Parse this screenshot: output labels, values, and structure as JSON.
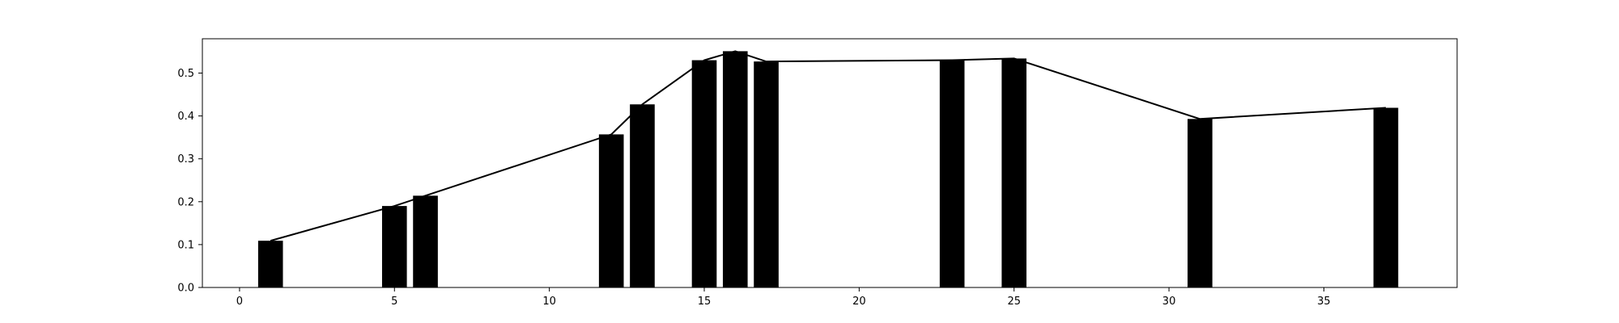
{
  "chart_data": {
    "type": "bar",
    "x": [
      1,
      5,
      6,
      12,
      13,
      15,
      16,
      17,
      23,
      25,
      31,
      37
    ],
    "values": [
      0.109,
      0.19,
      0.214,
      0.357,
      0.427,
      0.53,
      0.551,
      0.527,
      0.53,
      0.534,
      0.393,
      0.419
    ],
    "line_overlay": true,
    "xlim": [
      -1.2,
      39.3
    ],
    "ylim": [
      0,
      0.58
    ],
    "x_ticks": [
      0,
      5,
      10,
      15,
      20,
      25,
      30,
      35
    ],
    "y_ticks": [
      0.0,
      0.1,
      0.2,
      0.3,
      0.4,
      0.5
    ],
    "x_tick_labels": [
      "0",
      "5",
      "10",
      "15",
      "20",
      "25",
      "30",
      "35"
    ],
    "y_tick_labels": [
      "0.0",
      "0.1",
      "0.2",
      "0.3",
      "0.4",
      "0.5"
    ],
    "bar_color": "#000000",
    "line_color": "#000000",
    "grid": false,
    "title": "",
    "xlabel": "",
    "ylabel": ""
  }
}
